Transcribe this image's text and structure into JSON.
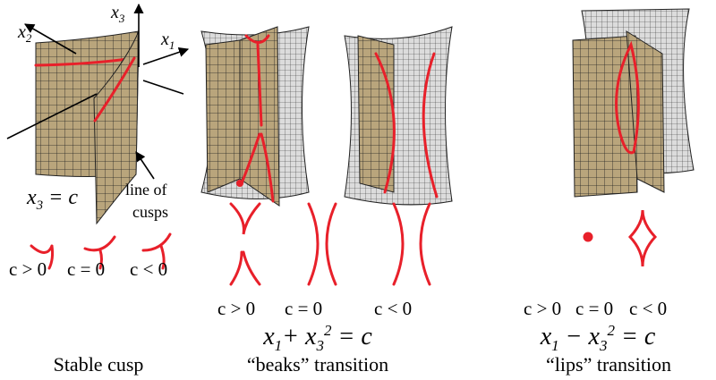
{
  "stable_cusp": {
    "axes": [
      {
        "var": "x",
        "sub": "2"
      },
      {
        "var": "x",
        "sub": "3"
      },
      {
        "var": "x",
        "sub": "1"
      }
    ],
    "section": {
      "var": "x",
      "sub": "3",
      "rest": " = c"
    },
    "annotation": [
      "line of",
      "cusps"
    ],
    "conditions": [
      "c > 0",
      "c = 0",
      "c < 0"
    ],
    "caption": "Stable cusp"
  },
  "beaks": {
    "conditions": [
      "c > 0",
      "c = 0",
      "c < 0"
    ],
    "equation": {
      "a": "x",
      "a_sub": "1",
      "op": "+ x",
      "b_sub": "3",
      "b_sup": "2",
      "rest": " = c"
    },
    "caption": "“beaks” transition"
  },
  "lips": {
    "conditions": [
      "c > 0",
      "c = 0",
      "c < 0"
    ],
    "equation": {
      "a": "x",
      "a_sub": "1",
      "op": " − x",
      "b_sub": "3",
      "b_sup": "2",
      "rest": " = c"
    },
    "caption": "“lips” transition"
  }
}
